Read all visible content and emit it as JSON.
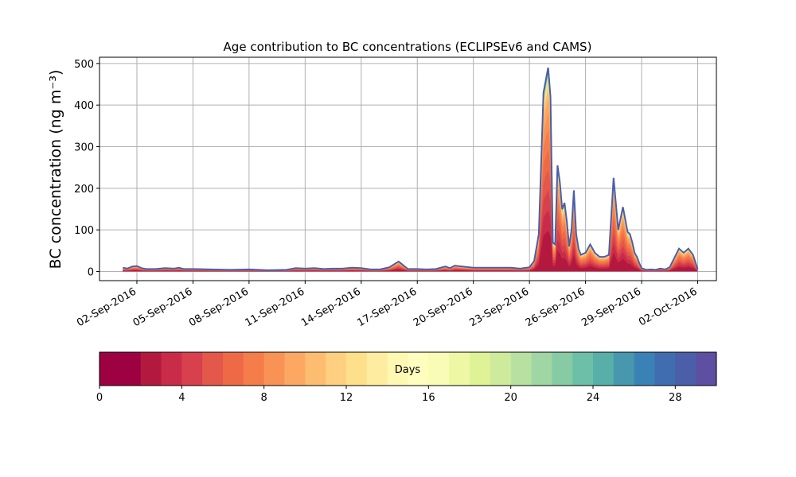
{
  "chart_data": {
    "type": "area",
    "title": "Age contribution to BC concentrations (ECLIPSEv6 and CAMS)",
    "ylabel": "BC concentration (ng m⁻³)",
    "xlabel": "",
    "x_range": [
      "2016-08-31",
      "2016-10-03"
    ],
    "ylim": [
      -22,
      515
    ],
    "grid": true,
    "x_ticks": [
      "02-Sep-2016",
      "05-Sep-2016",
      "08-Sep-2016",
      "11-Sep-2016",
      "14-Sep-2016",
      "17-Sep-2016",
      "20-Sep-2016",
      "23-Sep-2016",
      "26-Sep-2016",
      "29-Sep-2016",
      "02-Oct-2016"
    ],
    "x_tick_dates": [
      "2016-09-02",
      "2016-09-05",
      "2016-09-08",
      "2016-09-11",
      "2016-09-14",
      "2016-09-17",
      "2016-09-20",
      "2016-09-23",
      "2016-09-26",
      "2016-09-29",
      "2016-10-02"
    ],
    "y_ticks": [
      0,
      100,
      200,
      300,
      400,
      500
    ],
    "total_series": {
      "x": [
        "2016-09-01T06:00",
        "2016-09-01T12:00",
        "2016-09-01T18:00",
        "2016-09-02T00:00",
        "2016-09-02T06:00",
        "2016-09-02T12:00",
        "2016-09-03T00:00",
        "2016-09-03T12:00",
        "2016-09-04T00:00",
        "2016-09-04T06:00",
        "2016-09-04T12:00",
        "2016-09-05T00:00",
        "2016-09-06T00:00",
        "2016-09-07T00:00",
        "2016-09-08T00:00",
        "2016-09-09T00:00",
        "2016-09-10T00:00",
        "2016-09-10T12:00",
        "2016-09-11T00:00",
        "2016-09-11T12:00",
        "2016-09-12T00:00",
        "2016-09-12T12:00",
        "2016-09-13T00:00",
        "2016-09-13T12:00",
        "2016-09-14T00:00",
        "2016-09-14T12:00",
        "2016-09-15T00:00",
        "2016-09-15T12:00",
        "2016-09-16T00:00",
        "2016-09-16T12:00",
        "2016-09-17T00:00",
        "2016-09-17T12:00",
        "2016-09-18T00:00",
        "2016-09-18T06:00",
        "2016-09-18T12:00",
        "2016-09-18T18:00",
        "2016-09-19T00:00",
        "2016-09-20T00:00",
        "2016-09-21T00:00",
        "2016-09-22T00:00",
        "2016-09-22T12:00",
        "2016-09-23T00:00",
        "2016-09-23T06:00",
        "2016-09-23T12:00",
        "2016-09-23T18:00",
        "2016-09-24T00:00",
        "2016-09-24T03:00",
        "2016-09-24T06:00",
        "2016-09-24T09:00",
        "2016-09-24T12:00",
        "2016-09-24T15:00",
        "2016-09-24T18:00",
        "2016-09-24T21:00",
        "2016-09-25T00:00",
        "2016-09-25T03:00",
        "2016-09-25T06:00",
        "2016-09-25T09:00",
        "2016-09-25T12:00",
        "2016-09-25T15:00",
        "2016-09-25T18:00",
        "2016-09-26T00:00",
        "2016-09-26T06:00",
        "2016-09-26T12:00",
        "2016-09-26T18:00",
        "2016-09-27T00:00",
        "2016-09-27T06:00",
        "2016-09-27T12:00",
        "2016-09-27T18:00",
        "2016-09-28T00:00",
        "2016-09-28T06:00",
        "2016-09-28T09:00",
        "2016-09-28T12:00",
        "2016-09-28T15:00",
        "2016-09-28T18:00",
        "2016-09-28T21:00",
        "2016-09-29T00:00",
        "2016-09-29T03:00",
        "2016-09-29T06:00",
        "2016-09-29T12:00",
        "2016-09-29T18:00",
        "2016-09-30T00:00",
        "2016-09-30T06:00",
        "2016-09-30T12:00",
        "2016-10-01T00:00",
        "2016-10-01T06:00",
        "2016-10-01T12:00",
        "2016-10-01T18:00",
        "2016-10-02T00:00"
      ],
      "y": [
        9,
        7,
        12,
        13,
        8,
        6,
        6,
        8,
        7,
        9,
        6,
        6,
        5,
        4,
        5,
        3,
        4,
        8,
        7,
        8,
        6,
        7,
        7,
        9,
        8,
        5,
        5,
        10,
        24,
        6,
        6,
        5,
        6,
        9,
        12,
        8,
        14,
        9,
        9,
        9,
        7,
        10,
        25,
        90,
        430,
        490,
        420,
        70,
        65,
        255,
        215,
        150,
        165,
        120,
        60,
        100,
        195,
        90,
        55,
        40,
        45,
        65,
        45,
        35,
        35,
        40,
        225,
        100,
        155,
        95,
        90,
        70,
        45,
        35,
        20,
        8,
        6,
        4,
        5,
        4,
        7,
        5,
        10,
        55,
        45,
        55,
        40,
        5
      ]
    },
    "series_description": "stacked contributions by age (0-30 days); young ages dominate peaks",
    "colorbar": {
      "label": "Days",
      "min": 0,
      "max": 30,
      "ticks": [
        0,
        4,
        8,
        12,
        16,
        20,
        24,
        28
      ],
      "bins": 30,
      "colormap": [
        "#9e0142",
        "#b3183f",
        "#c92c48",
        "#d7404c",
        "#e4574b",
        "#ee6a47",
        "#f57d4a",
        "#f99355",
        "#fca863",
        "#fdbd70",
        "#fed07f",
        "#fee08b",
        "#feeca0",
        "#fff8b3",
        "#fffebe",
        "#f9fcb5",
        "#eef8a4",
        "#dff295",
        "#ceeb9c",
        "#b8e1a1",
        "#a0d6a4",
        "#87cba5",
        "#6dbfa6",
        "#58afa9",
        "#4798ae",
        "#3a82b6",
        "#3f6db0",
        "#4a5fa8",
        "#5e4fa2"
      ]
    }
  }
}
